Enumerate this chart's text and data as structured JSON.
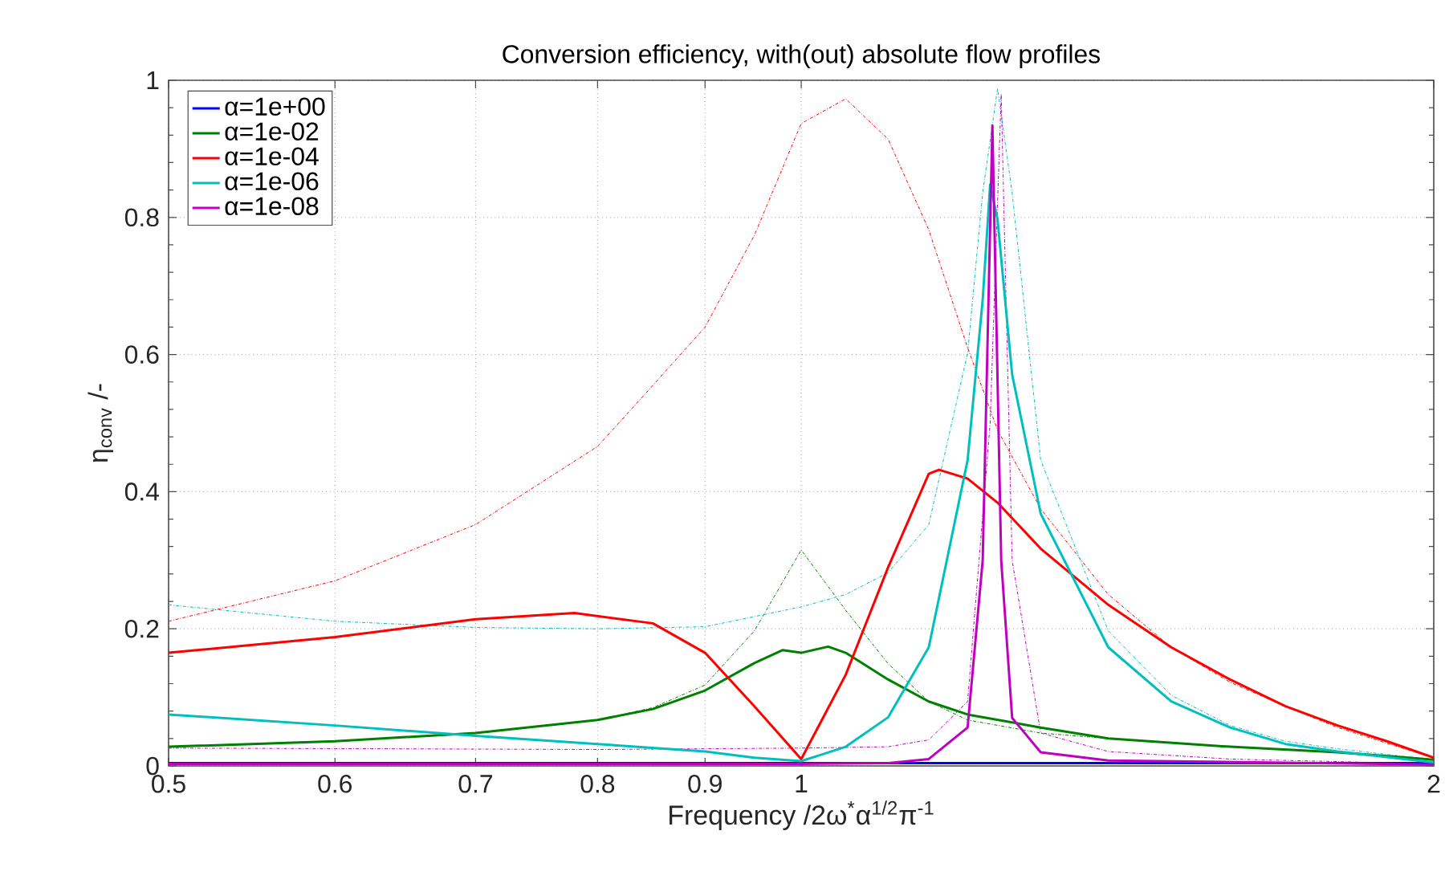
{
  "chart_data": {
    "type": "line",
    "title": "Conversion efficiency, with(out) absolute flow profiles",
    "xlabel": "Frequency /2ω$^{*}$α$^{1/2}$π$^{-1}$",
    "ylabel": "η$_{conv}$ /-",
    "log": "x",
    "xlim": [
      0.5,
      2
    ],
    "ylim": [
      0,
      1
    ],
    "xticks": [
      0.5,
      0.6,
      0.7,
      0.8,
      0.9,
      1,
      2
    ],
    "yticks": [
      0,
      0.2,
      0.4,
      0.6,
      0.8,
      1
    ],
    "grid": true,
    "legend": "top left",
    "series": [
      {
        "name": "α=1e+00",
        "color": "#0000ff",
        "line_style": "solid",
        "x": [
          0.5,
          1,
          1.5,
          2
        ],
        "values": [
          0.004,
          0.004,
          0.004,
          0.004
        ]
      },
      {
        "name": "α=1e-02",
        "color": "#008000",
        "line_style": "solid",
        "x": [
          0.5,
          0.6,
          0.7,
          0.8,
          0.85,
          0.9,
          0.95,
          0.98,
          1,
          1.03,
          1.05,
          1.1,
          1.15,
          1.2,
          1.3,
          1.4,
          1.6,
          1.8,
          2
        ],
        "values": [
          0.028,
          0.036,
          0.048,
          0.067,
          0.083,
          0.11,
          0.15,
          0.169,
          0.165,
          0.174,
          0.165,
          0.126,
          0.094,
          0.075,
          0.056,
          0.04,
          0.028,
          0.02,
          0.009
        ]
      },
      {
        "name": "α=1e-04",
        "color": "#ff0000",
        "line_style": "solid",
        "x": [
          0.5,
          0.6,
          0.7,
          0.78,
          0.85,
          0.9,
          0.95,
          1,
          1.05,
          1.1,
          1.15,
          1.163,
          1.2,
          1.24,
          1.3,
          1.4,
          1.5,
          1.6,
          1.7,
          1.8,
          1.9,
          2
        ],
        "values": [
          0.165,
          0.188,
          0.214,
          0.223,
          0.208,
          0.165,
          0.087,
          0.01,
          0.133,
          0.29,
          0.426,
          0.432,
          0.419,
          0.384,
          0.317,
          0.235,
          0.173,
          0.126,
          0.087,
          0.059,
          0.036,
          0.012
        ]
      },
      {
        "name": "α=1e-06",
        "color": "#00bfbf",
        "line_style": "solid",
        "x": [
          0.5,
          0.6,
          0.7,
          0.8,
          0.9,
          0.95,
          1,
          1.05,
          1.1,
          1.15,
          1.2,
          1.22,
          1.23,
          1.24,
          1.26,
          1.3,
          1.4,
          1.5,
          1.6,
          1.7,
          1.8,
          2
        ],
        "values": [
          0.075,
          0.059,
          0.044,
          0.032,
          0.021,
          0.012,
          0.007,
          0.028,
          0.071,
          0.173,
          0.446,
          0.68,
          0.848,
          0.797,
          0.571,
          0.368,
          0.173,
          0.094,
          0.056,
          0.032,
          0.021,
          0.005
        ]
      },
      {
        "name": "α=1e-08",
        "color": "#bf00bf",
        "line_style": "solid",
        "x": [
          0.5,
          1,
          1.1,
          1.15,
          1.2,
          1.22,
          1.233,
          1.245,
          1.26,
          1.3,
          1.4,
          2
        ],
        "values": [
          0.003,
          0.003,
          0.004,
          0.01,
          0.056,
          0.3,
          0.934,
          0.3,
          0.07,
          0.02,
          0.008,
          0.002
        ]
      },
      {
        "color": "#008000",
        "line_style": "dashdot",
        "x": [
          0.5,
          0.6,
          0.7,
          0.8,
          0.85,
          0.9,
          0.95,
          1,
          1.05,
          1.1,
          1.15,
          1.2,
          1.3,
          1.4,
          1.6,
          1.8,
          2
        ],
        "values": [
          0.028,
          0.036,
          0.048,
          0.067,
          0.085,
          0.118,
          0.197,
          0.315,
          0.227,
          0.149,
          0.094,
          0.067,
          0.048,
          0.04,
          0.028,
          0.02,
          0.009
        ]
      },
      {
        "color": "#ff0000",
        "line_style": "dashdot",
        "x": [
          0.5,
          0.6,
          0.7,
          0.8,
          0.85,
          0.9,
          0.95,
          1,
          1.05,
          1.1,
          1.15,
          1.2,
          1.24,
          1.3,
          1.4,
          1.5,
          1.6,
          1.7,
          1.8,
          1.9,
          2
        ],
        "values": [
          0.211,
          0.27,
          0.352,
          0.466,
          0.555,
          0.64,
          0.774,
          0.937,
          0.973,
          0.914,
          0.782,
          0.61,
          0.49,
          0.375,
          0.25,
          0.173,
          0.122,
          0.087,
          0.056,
          0.033,
          0.012
        ]
      },
      {
        "color": "#00bfbf",
        "line_style": "dashdot",
        "x": [
          0.5,
          0.6,
          0.7,
          0.8,
          0.9,
          1,
          1.05,
          1.1,
          1.15,
          1.2,
          1.22,
          1.24,
          1.26,
          1.3,
          1.4,
          1.5,
          1.6,
          1.7,
          1.8,
          2
        ],
        "values": [
          0.235,
          0.211,
          0.202,
          0.2,
          0.203,
          0.232,
          0.25,
          0.282,
          0.352,
          0.602,
          0.836,
          0.988,
          0.836,
          0.446,
          0.197,
          0.103,
          0.059,
          0.036,
          0.025,
          0.009
        ]
      },
      {
        "color": "#bf00bf",
        "line_style": "dashdot",
        "x": [
          0.5,
          0.8,
          1,
          1.1,
          1.15,
          1.2,
          1.23,
          1.245,
          1.26,
          1.3,
          1.4,
          1.6,
          2
        ],
        "values": [
          0.026,
          0.024,
          0.026,
          0.028,
          0.038,
          0.094,
          0.5,
          0.98,
          0.3,
          0.048,
          0.021,
          0.01,
          0.003
        ]
      }
    ]
  }
}
